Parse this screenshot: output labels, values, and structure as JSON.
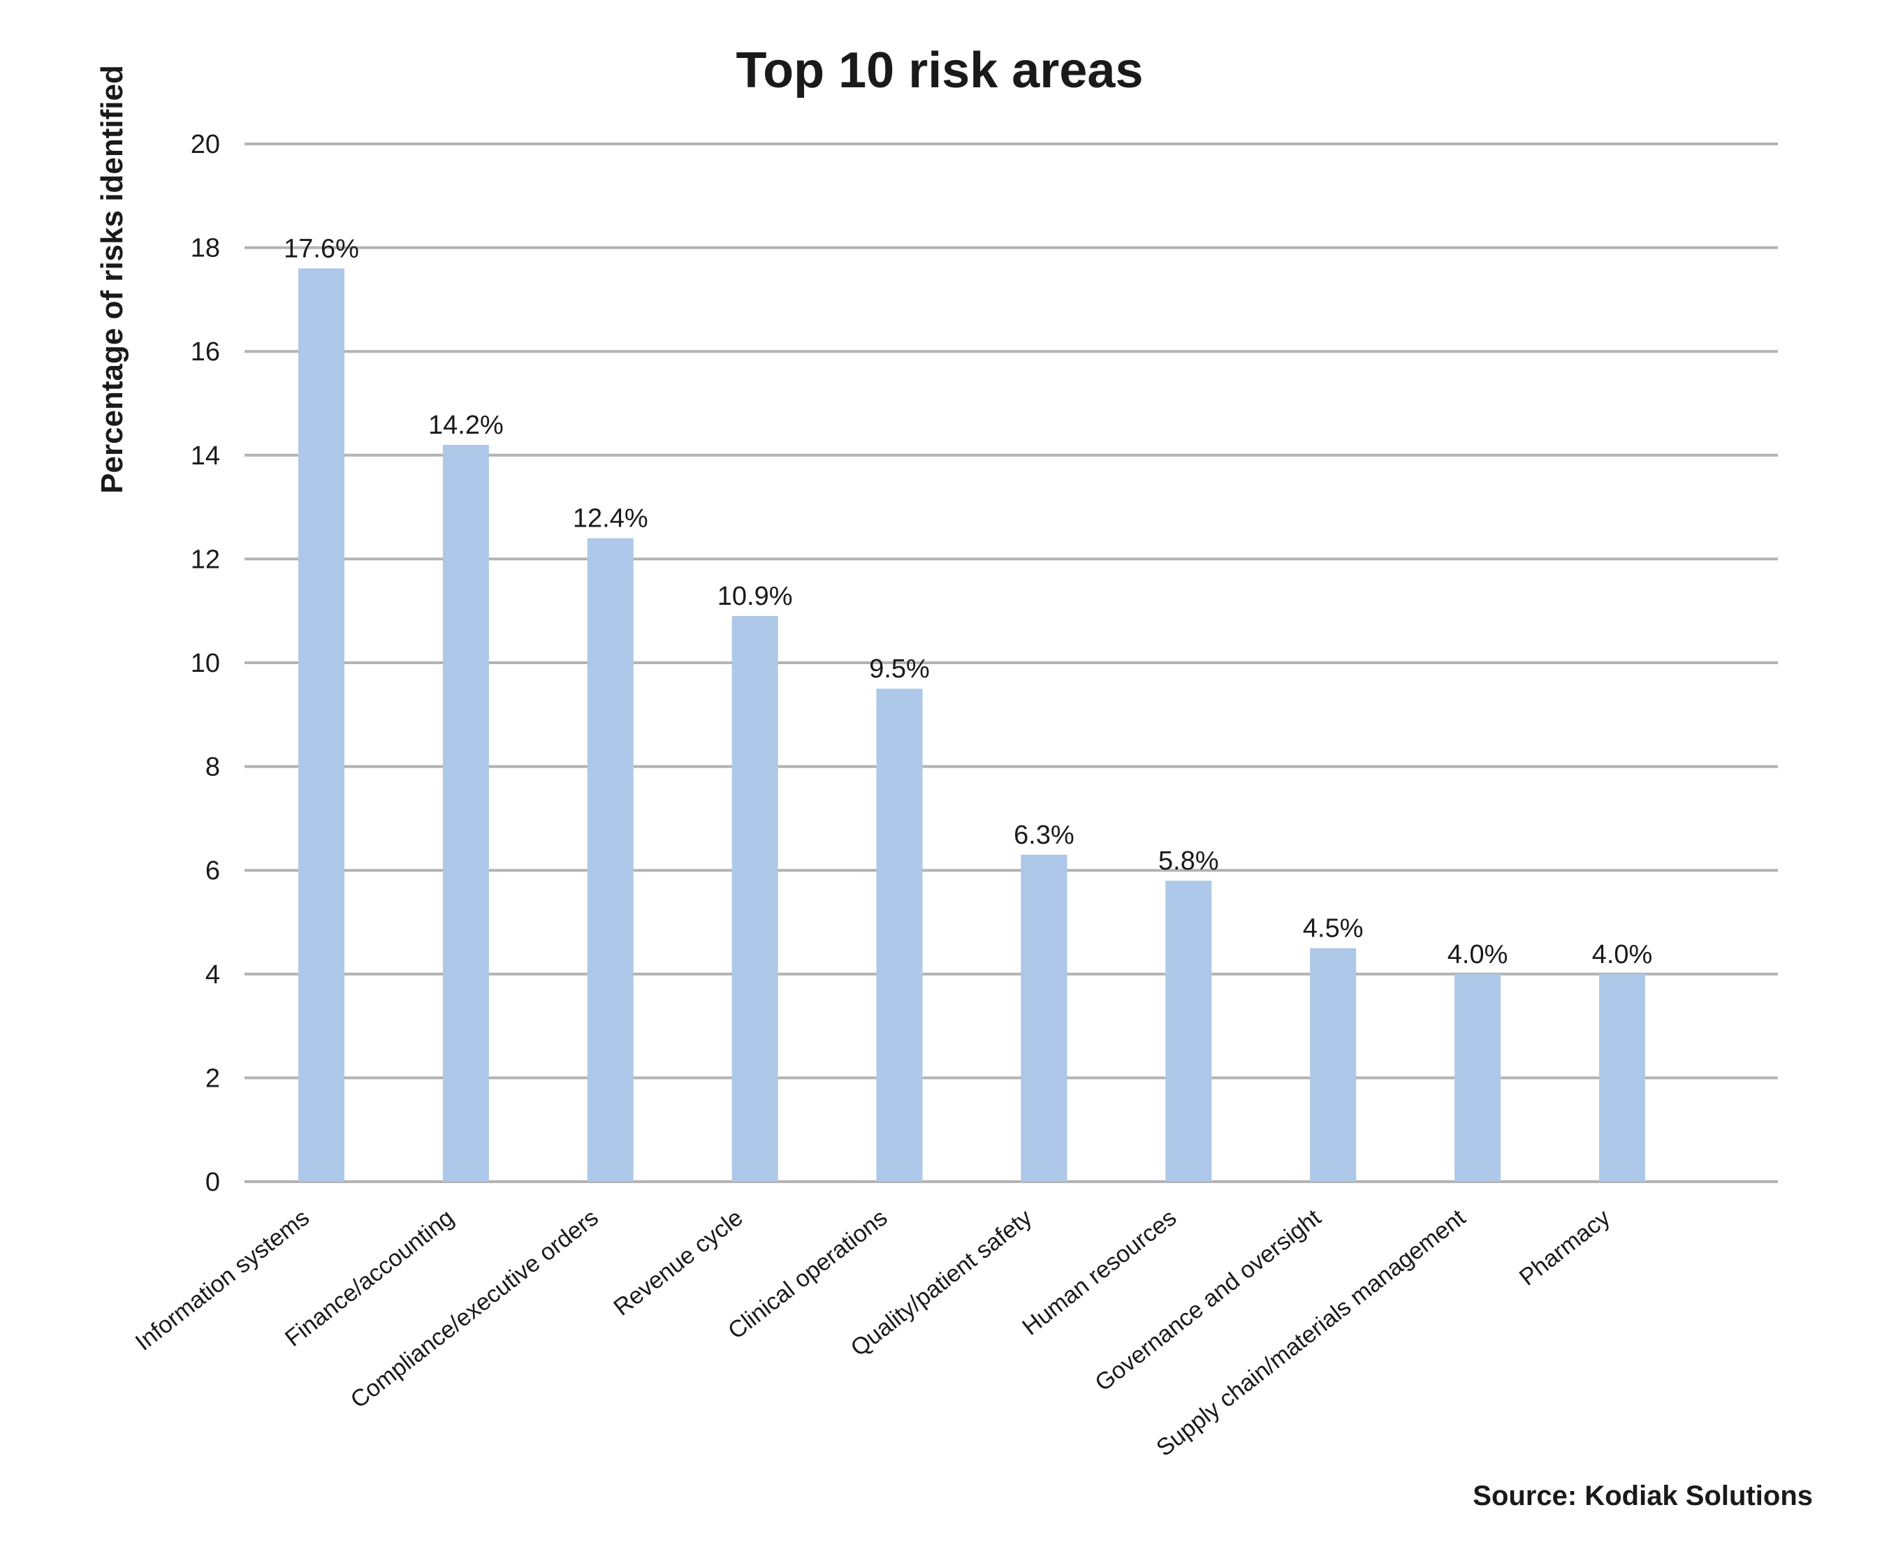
{
  "chart_data": {
    "type": "bar",
    "title": "Top 10 risk areas",
    "xlabel": "",
    "ylabel": "Percentage of risks identified",
    "ylim": [
      0,
      20
    ],
    "yticks": [
      "0",
      "2",
      "4",
      "6",
      "8",
      "10",
      "12",
      "14",
      "16",
      "18",
      "20"
    ],
    "categories": [
      "Information systems",
      "Finance/accounting",
      "Compliance/executive orders",
      "Revenue cycle",
      "Clinical operations",
      "Quality/patient safety",
      "Human resources",
      "Governance and oversight",
      "Supply chain/materials management",
      "Pharmacy"
    ],
    "values": [
      17.6,
      14.2,
      12.4,
      10.9,
      9.5,
      6.3,
      5.8,
      4.5,
      4.0,
      4.0
    ],
    "data_labels": [
      "17.6%",
      "14.2%",
      "12.4%",
      "10.9%",
      "9.5%",
      "6.3%",
      "5.8%",
      "4.5%",
      "4.0%",
      "4.0%"
    ],
    "grid": true,
    "legend": "none",
    "bar_color": "#adc8e8",
    "source": "Source: Kodiak Solutions"
  }
}
